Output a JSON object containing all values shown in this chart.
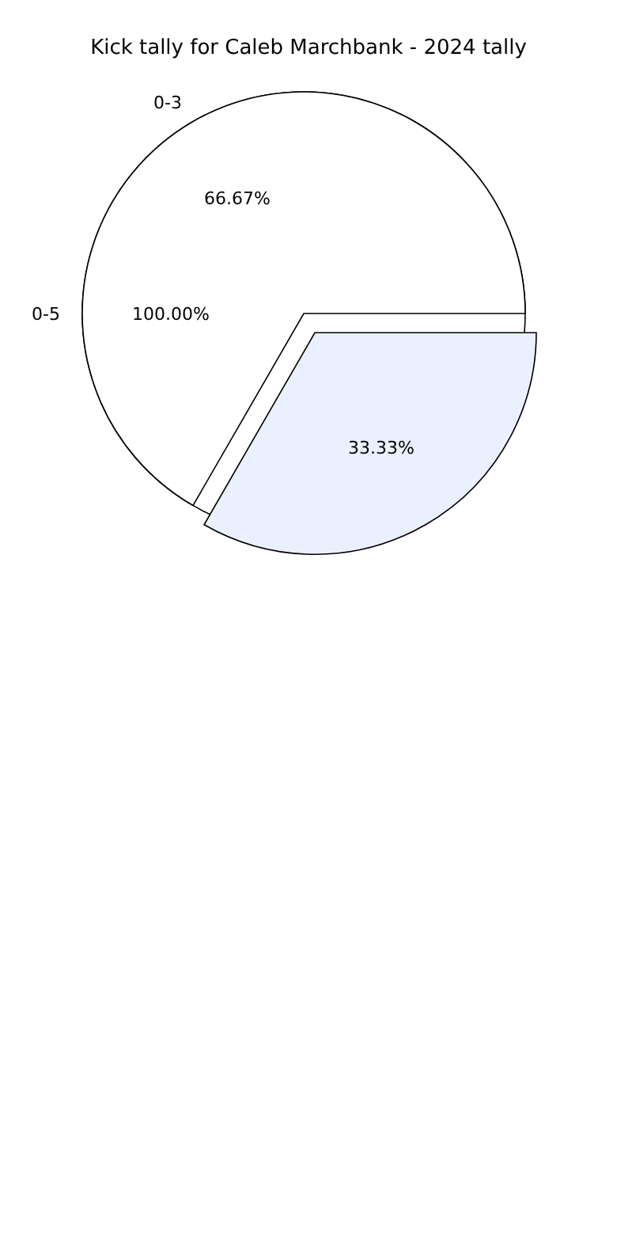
{
  "chart_data": [
    {
      "type": "pie",
      "title": "Kick tally for Caleb Marchbank - 2024 tally",
      "categories": [
        "0-5"
      ],
      "values": [
        100
      ],
      "colors": [
        "#ffffff"
      ],
      "value_labels": [
        "100.00%"
      ]
    },
    {
      "type": "pie",
      "categories": [
        "0-3",
        null
      ],
      "values": [
        66.67,
        33.33
      ],
      "colors": [
        "#ffffff",
        "#ebf0fe"
      ],
      "value_labels": [
        "66.67%",
        "33.33%"
      ]
    }
  ]
}
